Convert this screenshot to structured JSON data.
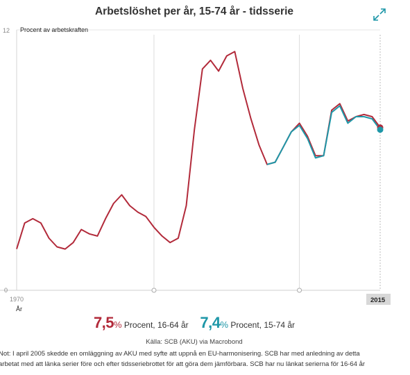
{
  "header": {
    "title": "Arbetslöshet per år, 15-74 år - tidsserie",
    "expand_icon": "expand-arrows-icon"
  },
  "chart_data": {
    "type": "line",
    "ylabel": "Procent av arbetskraften",
    "xlabel": "År",
    "ylim": [
      0,
      12
    ],
    "yticks": [
      "0",
      "12"
    ],
    "xlim": [
      1970,
      2015
    ],
    "xtick_start": "1970",
    "xtick_end": "2015",
    "markers_x": [
      1987,
      2005
    ],
    "series": [
      {
        "name": "16-64 år",
        "color": "#b22a3a",
        "x": [
          1970,
          1971,
          1972,
          1973,
          1974,
          1975,
          1976,
          1977,
          1978,
          1979,
          1980,
          1981,
          1982,
          1983,
          1984,
          1985,
          1986,
          1987,
          1988,
          1989,
          1990,
          1991,
          1992,
          1993,
          1994,
          1995,
          1996,
          1997,
          1998,
          1999,
          2000,
          2001,
          2002,
          2003,
          2004,
          2005,
          2006,
          2007,
          2008,
          2009,
          2010,
          2011,
          2012,
          2013,
          2014,
          2015
        ],
        "values": [
          1.9,
          3.1,
          3.3,
          3.1,
          2.4,
          2.0,
          1.9,
          2.2,
          2.8,
          2.6,
          2.5,
          3.3,
          4.0,
          4.4,
          3.9,
          3.6,
          3.4,
          2.9,
          2.5,
          2.2,
          2.4,
          3.9,
          7.4,
          10.2,
          10.6,
          10.1,
          10.8,
          11.0,
          9.3,
          7.9,
          6.7,
          5.8,
          5.9,
          6.6,
          7.3,
          7.7,
          7.1,
          6.2,
          6.2,
          8.3,
          8.6,
          7.8,
          8.0,
          8.1,
          8.0,
          7.5
        ]
      },
      {
        "name": "15-74 år",
        "color": "#1e97a8",
        "x": [
          2001,
          2002,
          2003,
          2004,
          2005,
          2006,
          2007,
          2008,
          2009,
          2010,
          2011,
          2012,
          2013,
          2014,
          2015
        ],
        "values": [
          5.8,
          5.9,
          6.6,
          7.3,
          7.6,
          7.0,
          6.1,
          6.2,
          8.2,
          8.5,
          7.7,
          8.0,
          8.0,
          7.9,
          7.4
        ]
      }
    ]
  },
  "legend": {
    "red_value": "7,5",
    "red_pct": "%",
    "red_text": " Procent, 16-64 år",
    "teal_value": "7,4",
    "teal_pct": "%",
    "teal_text": " Procent, 15-74 år"
  },
  "source": "Källa: SCB (AKU) via Macrobond",
  "note": {
    "line1": "Not: I april 2005 skedde en omläggning av AKU med syfte att uppnå en EU-harmonisering. SCB har med anledning av detta",
    "line2": "arbetat med att länka serier före och efter tidsseriebrottet för att göra dem jämförbara. SCB har nu länkat serierna för 16-64 år"
  }
}
